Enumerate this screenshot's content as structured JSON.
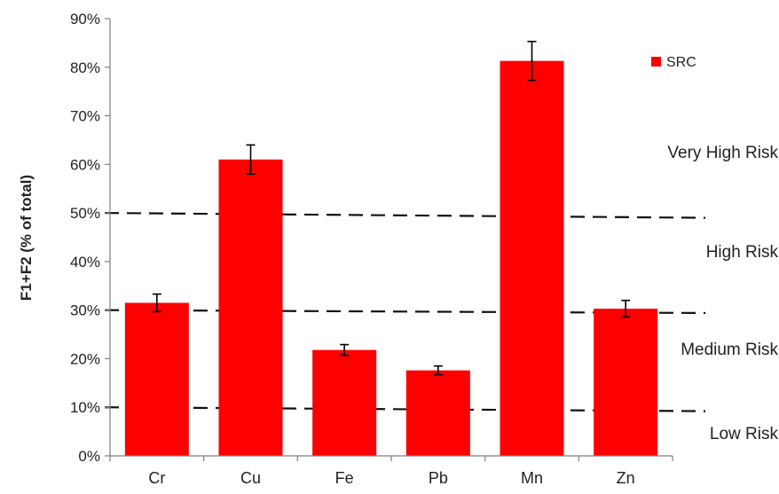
{
  "chart_data": {
    "type": "bar",
    "title": "",
    "xlabel": "",
    "ylabel": "F1+F2 (% of total)",
    "categories": [
      "Cr",
      "Cu",
      "Fe",
      "Pb",
      "Mn",
      "Zn"
    ],
    "series": [
      {
        "name": "SRC",
        "values": [
          31.5,
          61.0,
          21.8,
          17.6,
          81.3,
          30.3
        ],
        "errors": [
          1.8,
          3.0,
          1.1,
          0.9,
          4.0,
          1.7
        ],
        "color": "#ff0000"
      }
    ],
    "ylim": [
      0,
      90
    ],
    "yticks": [
      0,
      10,
      20,
      30,
      40,
      50,
      60,
      70,
      80,
      90
    ],
    "ytick_labels": [
      "0%",
      "10%",
      "20%",
      "30%",
      "40%",
      "50%",
      "60%",
      "70%",
      "80%",
      "90%"
    ],
    "thresholds": [
      {
        "y_start": 50,
        "y_end": 49,
        "style": "dashed"
      },
      {
        "y_start": 30,
        "y_end": 29.4,
        "style": "dashed"
      },
      {
        "y_start": 10,
        "y_end": 9.2,
        "style": "dashed"
      }
    ],
    "zone_labels": [
      "Very High Risk",
      "High Risk",
      "Medium Risk",
      "Low  Risk"
    ],
    "legend_position": "top-right",
    "grid": false
  }
}
